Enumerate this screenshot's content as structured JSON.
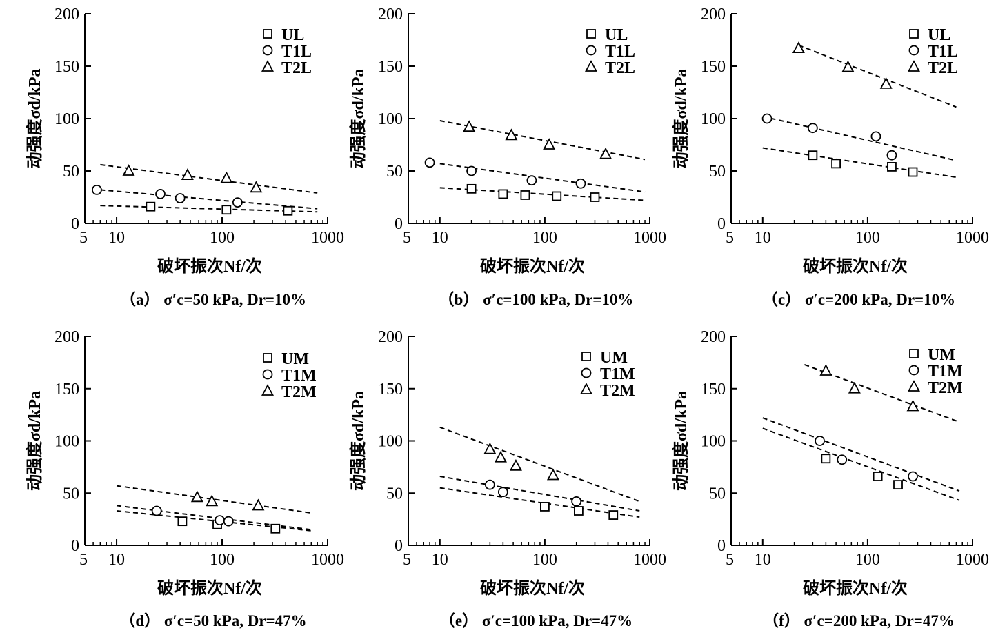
{
  "figure": {
    "ylabel": "动强度σd/kPa",
    "xlabel": "破坏振次Nf/次"
  },
  "chart_data": [
    {
      "type": "scatter",
      "panel": "a",
      "caption": "（a） σ′c=50 kPa, Dr=10%",
      "xscale": "log",
      "xlim": [
        5,
        1000
      ],
      "ylim": [
        0,
        200
      ],
      "x_ticks": [
        "5",
        "10",
        "100",
        "1000"
      ],
      "y_ticks": [
        "0",
        "50",
        "100",
        "150",
        "200"
      ],
      "ylabel": "动强度σd/kPa",
      "xlabel": "破坏振次Nf/次",
      "legend_position": "top-right",
      "series": [
        {
          "name": "UL",
          "marker": "square",
          "points": [
            [
              21,
              16
            ],
            [
              110,
              13
            ],
            [
              420,
              12
            ]
          ],
          "fit": [
            [
              7,
              17
            ],
            [
              800,
              11
            ]
          ]
        },
        {
          "name": "T1L",
          "marker": "circle",
          "points": [
            [
              6.5,
              32
            ],
            [
              26,
              28
            ],
            [
              40,
              24
            ],
            [
              140,
              20
            ]
          ],
          "fit": [
            [
              7,
              32
            ],
            [
              800,
              14
            ]
          ]
        },
        {
          "name": "T2L",
          "marker": "triangle",
          "points": [
            [
              13,
              50
            ],
            [
              47,
              46
            ],
            [
              110,
              43
            ],
            [
              210,
              34
            ]
          ],
          "fit": [
            [
              7,
              56
            ],
            [
              800,
              29
            ]
          ]
        }
      ]
    },
    {
      "type": "scatter",
      "panel": "b",
      "caption": "（b） σ′c=100 kPa, Dr=10%",
      "xscale": "log",
      "xlim": [
        5,
        1000
      ],
      "ylim": [
        0,
        200
      ],
      "x_ticks": [
        "5",
        "10",
        "100",
        "1000"
      ],
      "y_ticks": [
        "0",
        "50",
        "100",
        "150",
        "200"
      ],
      "ylabel": "动强度σd/kPa",
      "xlabel": "破坏振次Nf/次",
      "legend_position": "top-right",
      "series": [
        {
          "name": "UL",
          "marker": "square",
          "points": [
            [
              20,
              33
            ],
            [
              40,
              28
            ],
            [
              65,
              27
            ],
            [
              130,
              26
            ],
            [
              300,
              25
            ]
          ],
          "fit": [
            [
              10,
              34
            ],
            [
              900,
              22
            ]
          ]
        },
        {
          "name": "T1L",
          "marker": "circle",
          "points": [
            [
              8,
              58
            ],
            [
              20,
              50
            ],
            [
              75,
              41
            ],
            [
              220,
              38
            ]
          ],
          "fit": [
            [
              10,
              57
            ],
            [
              900,
              30
            ]
          ]
        },
        {
          "name": "T2L",
          "marker": "triangle",
          "points": [
            [
              19,
              92
            ],
            [
              48,
              84
            ],
            [
              110,
              75
            ],
            [
              380,
              66
            ]
          ],
          "fit": [
            [
              10,
              98
            ],
            [
              900,
              61
            ]
          ]
        }
      ]
    },
    {
      "type": "scatter",
      "panel": "c",
      "caption": "（c） σ′c=200 kPa, Dr=10%",
      "xscale": "log",
      "xlim": [
        5,
        1000
      ],
      "ylim": [
        0,
        200
      ],
      "x_ticks": [
        "5",
        "10",
        "100",
        "1000"
      ],
      "y_ticks": [
        "0",
        "50",
        "100",
        "150",
        "200"
      ],
      "ylabel": "动强度σd/kPa",
      "xlabel": "破坏振次Nf/次",
      "legend_position": "top-right",
      "series": [
        {
          "name": "UL",
          "marker": "square",
          "points": [
            [
              30,
              65
            ],
            [
              50,
              57
            ],
            [
              170,
              54
            ],
            [
              270,
              49
            ]
          ],
          "fit": [
            [
              10,
              72
            ],
            [
              700,
              44
            ]
          ]
        },
        {
          "name": "T1L",
          "marker": "circle",
          "points": [
            [
              11,
              100
            ],
            [
              30,
              91
            ],
            [
              120,
              83
            ],
            [
              170,
              65
            ]
          ],
          "fit": [
            [
              10,
              102
            ],
            [
              700,
              60
            ]
          ]
        },
        {
          "name": "T2L",
          "marker": "triangle",
          "points": [
            [
              22,
              167
            ],
            [
              65,
              149
            ],
            [
              150,
              133
            ]
          ],
          "fit": [
            [
              22,
              170
            ],
            [
              700,
              111
            ]
          ]
        }
      ]
    },
    {
      "type": "scatter",
      "panel": "d",
      "caption": "（d） σ′c=50 kPa, Dr=47%",
      "xscale": "log",
      "xlim": [
        5,
        1000
      ],
      "ylim": [
        0,
        200
      ],
      "x_ticks": [
        "5",
        "10",
        "100",
        "1000"
      ],
      "y_ticks": [
        "0",
        "50",
        "100",
        "150",
        "200"
      ],
      "ylabel": "动强度σd/kPa",
      "xlabel": "破坏振次Nf/次",
      "legend_position": "top-right",
      "series": [
        {
          "name": "UM",
          "marker": "square",
          "points": [
            [
              42,
              23
            ],
            [
              90,
              20
            ],
            [
              320,
              16
            ]
          ],
          "fit": [
            [
              10,
              33
            ],
            [
              700,
              14
            ]
          ]
        },
        {
          "name": "T1M",
          "marker": "circle",
          "points": [
            [
              24,
              33
            ],
            [
              95,
              24
            ],
            [
              115,
              23
            ]
          ],
          "fit": [
            [
              10,
              38
            ],
            [
              700,
              15
            ]
          ]
        },
        {
          "name": "T2M",
          "marker": "triangle",
          "points": [
            [
              58,
              46
            ],
            [
              80,
              42
            ],
            [
              220,
              38
            ]
          ],
          "fit": [
            [
              10,
              57
            ],
            [
              700,
              31
            ]
          ]
        }
      ]
    },
    {
      "type": "scatter",
      "panel": "e",
      "caption": "（e） σ′c=100 kPa, Dr=47%",
      "xscale": "log",
      "xlim": [
        5,
        1000
      ],
      "ylim": [
        0,
        200
      ],
      "x_ticks": [
        "5",
        "10",
        "100",
        "1000"
      ],
      "y_ticks": [
        "0",
        "50",
        "100",
        "150",
        "200"
      ],
      "ylabel": "动强度σd/kPa",
      "xlabel": "破坏振次Nf/次",
      "legend_position": "top-right",
      "series": [
        {
          "name": "UM",
          "marker": "square",
          "points": [
            [
              100,
              37
            ],
            [
              210,
              33
            ],
            [
              450,
              29
            ]
          ],
          "fit": [
            [
              10,
              55
            ],
            [
              800,
              27
            ]
          ]
        },
        {
          "name": "T1M",
          "marker": "circle",
          "points": [
            [
              30,
              58
            ],
            [
              40,
              51
            ],
            [
              200,
              42
            ]
          ],
          "fit": [
            [
              10,
              66
            ],
            [
              800,
              33
            ]
          ]
        },
        {
          "name": "T2M",
          "marker": "triangle",
          "points": [
            [
              30,
              92
            ],
            [
              38,
              84
            ],
            [
              53,
              76
            ],
            [
              120,
              67
            ]
          ],
          "fit": [
            [
              10,
              113
            ],
            [
              800,
              42
            ]
          ]
        }
      ]
    },
    {
      "type": "scatter",
      "panel": "f",
      "caption": "（f） σ′c=200 kPa, Dr=47%",
      "xscale": "log",
      "xlim": [
        5,
        1000
      ],
      "ylim": [
        0,
        200
      ],
      "x_ticks": [
        "5",
        "10",
        "100",
        "1000"
      ],
      "y_ticks": [
        "0",
        "50",
        "100",
        "150",
        "200"
      ],
      "ylabel": "动强度σd/kPa",
      "xlabel": "破坏振次Nf/次",
      "legend_position": "top-right",
      "series": [
        {
          "name": "UM",
          "marker": "square",
          "points": [
            [
              40,
              83
            ],
            [
              125,
              66
            ],
            [
              195,
              58
            ]
          ],
          "fit": [
            [
              10,
              112
            ],
            [
              750,
              43
            ]
          ]
        },
        {
          "name": "T1M",
          "marker": "circle",
          "points": [
            [
              35,
              100
            ],
            [
              57,
              82
            ],
            [
              270,
              66
            ]
          ],
          "fit": [
            [
              10,
              122
            ],
            [
              750,
              52
            ]
          ]
        },
        {
          "name": "T2M",
          "marker": "triangle",
          "points": [
            [
              40,
              167
            ],
            [
              75,
              150
            ],
            [
              270,
              133
            ]
          ],
          "fit": [
            [
              25,
              173
            ],
            [
              750,
              118
            ]
          ]
        }
      ]
    }
  ]
}
